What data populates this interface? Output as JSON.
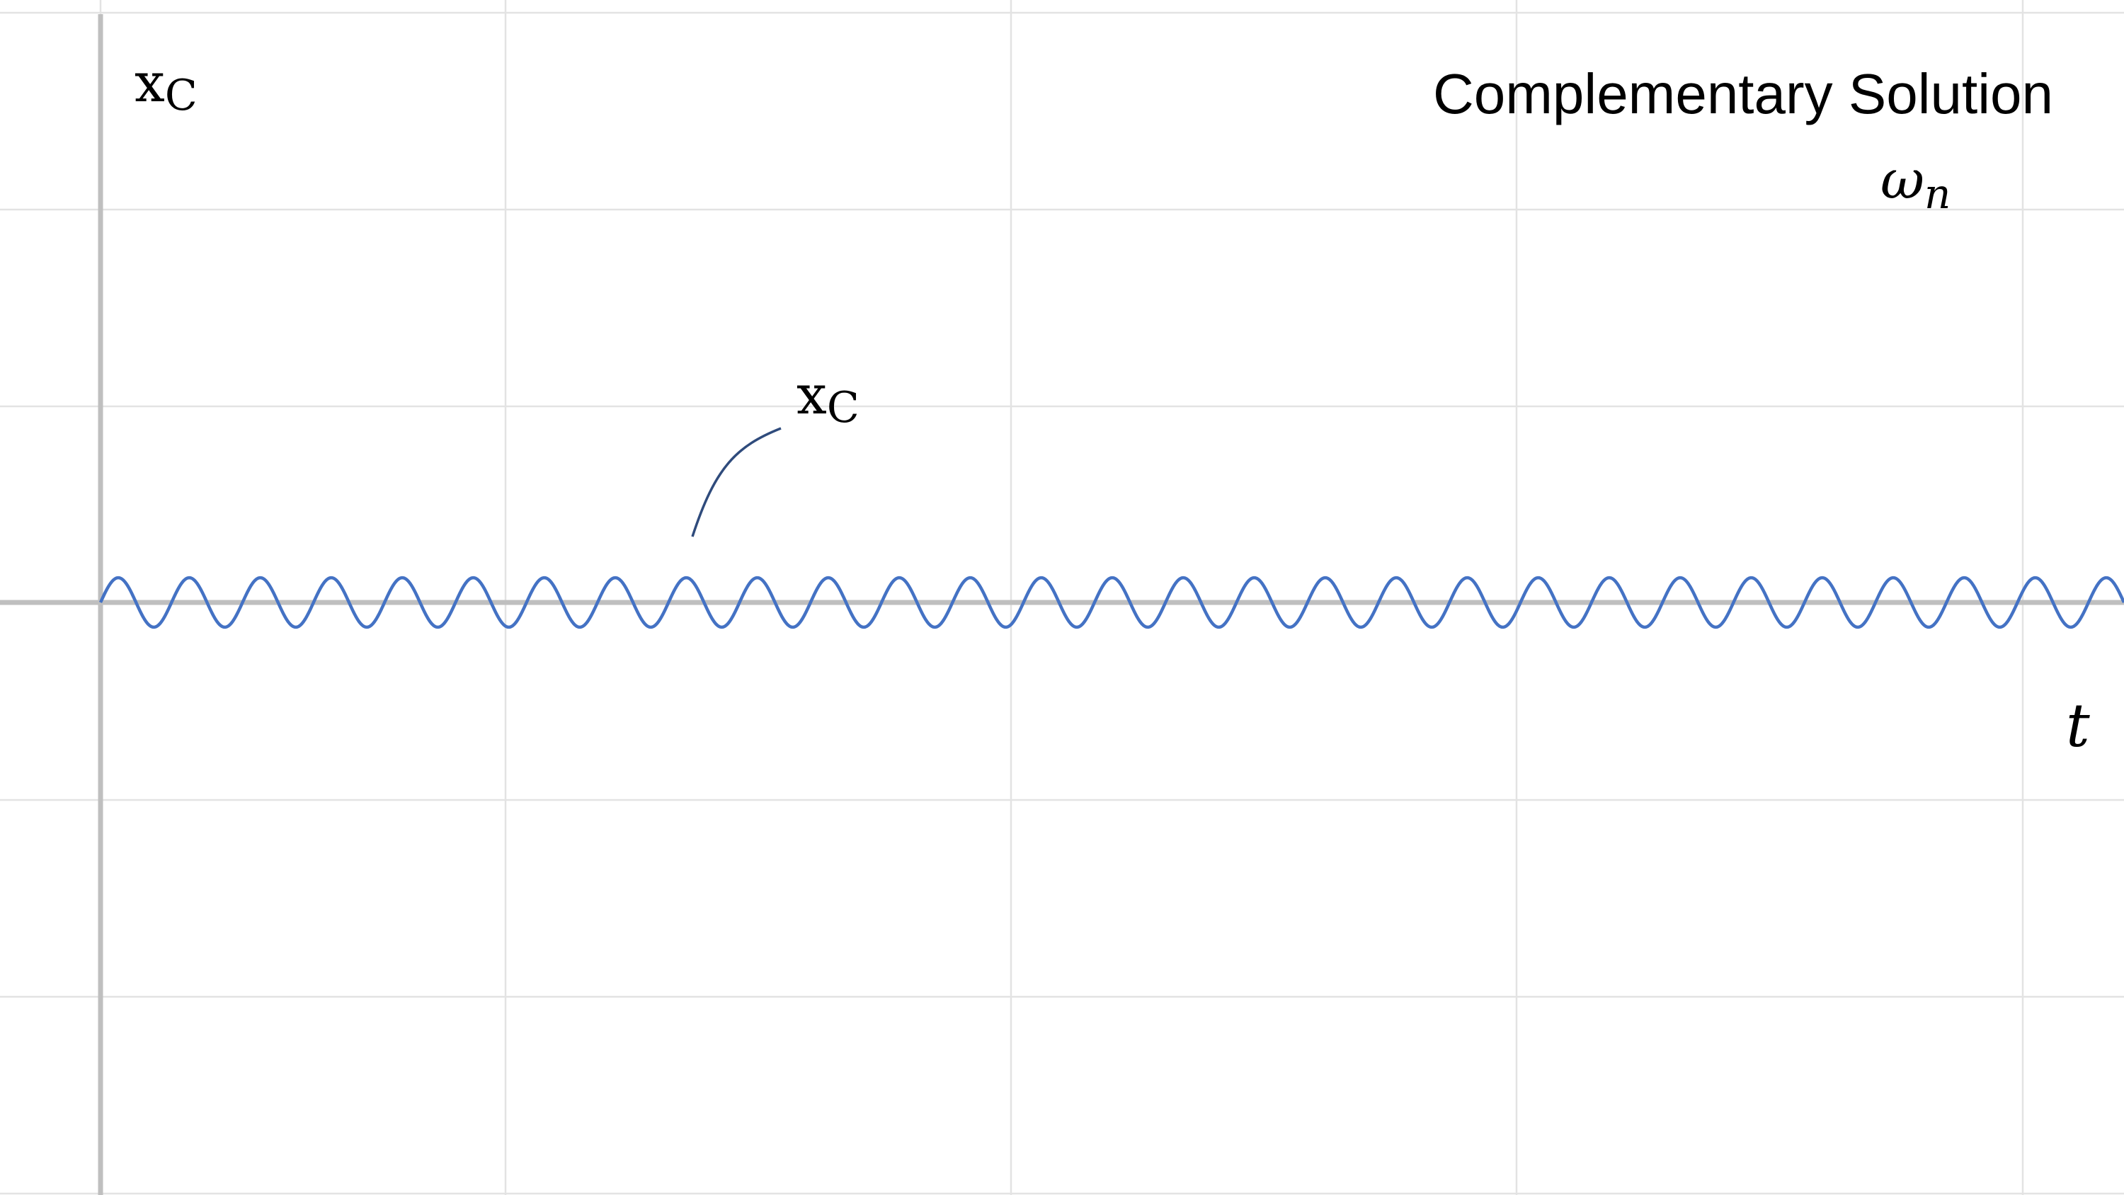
{
  "chart_data": {
    "type": "line",
    "title": "Complementary Solution",
    "subtitle": "ωn",
    "ylabel": "xC",
    "xlabel": "t",
    "annotation": "xC",
    "grid": true,
    "legend": "none",
    "xlim": [
      0,
      1
    ],
    "ylim": [
      -1.5,
      1.5
    ],
    "series": [
      {
        "amplitude": 0.107,
        "cycles": 28.5,
        "color": "#4472c4"
      }
    ]
  }
}
